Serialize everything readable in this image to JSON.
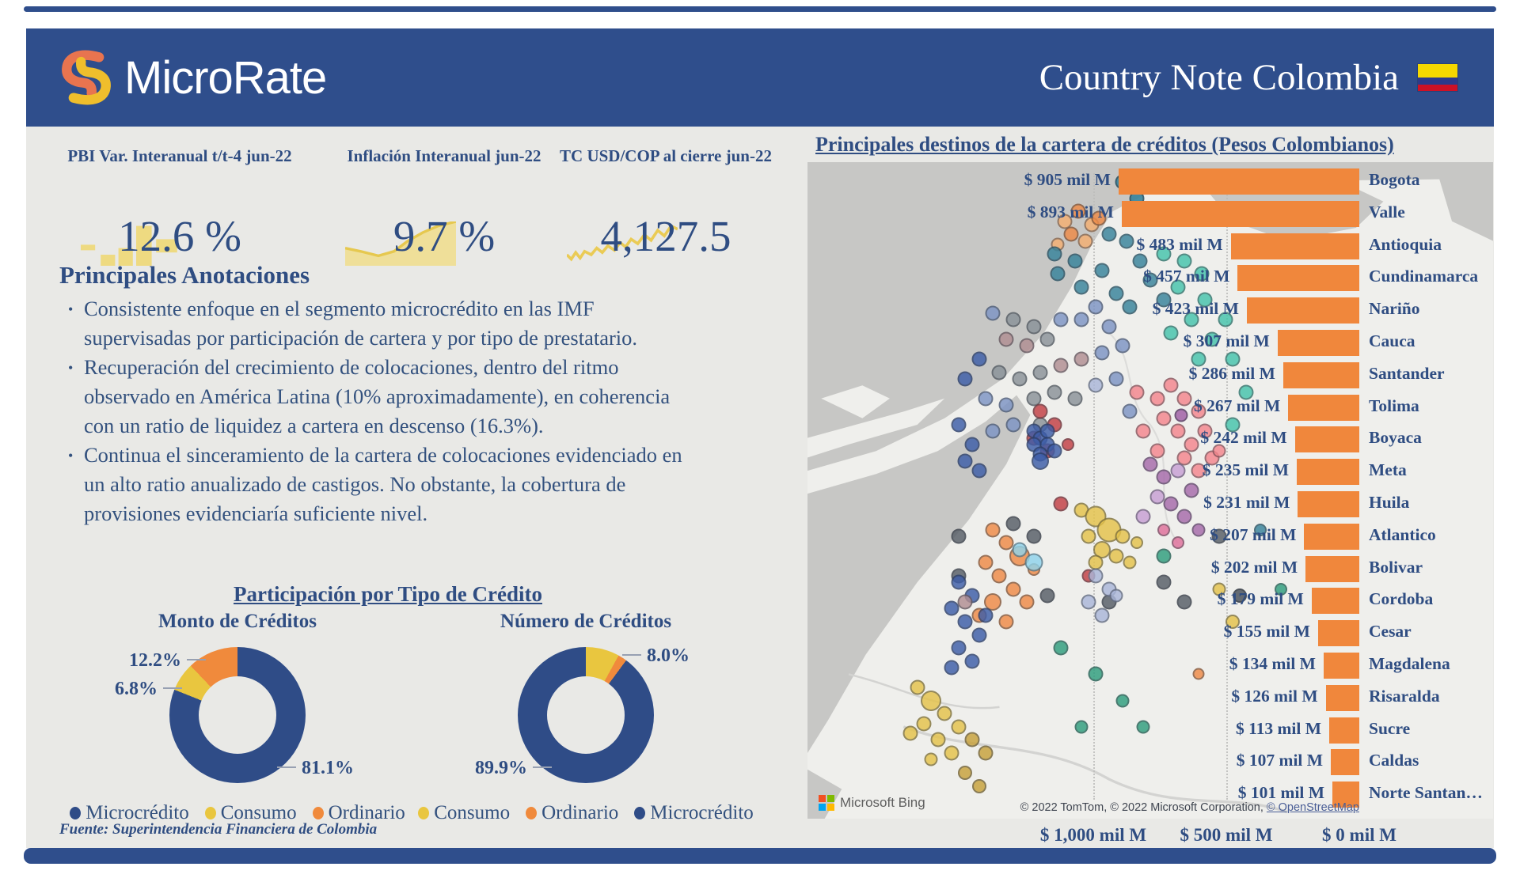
{
  "header": {
    "logo_text": "MicroRate",
    "title": "Country Note Colombia",
    "flag": "colombia-flag",
    "band_color": "#2F4E8C"
  },
  "kpis": [
    {
      "label": "PBI Var. Interanual t/t-4 jun-22",
      "value": "12.6 %",
      "spark": "bar"
    },
    {
      "label": "Inflación Interanual jun-22",
      "value": "9.7 %",
      "spark": "area"
    },
    {
      "label": "TC USD/COP al cierre jun-22",
      "value": "4,127.5",
      "spark": "line"
    }
  ],
  "annotations": {
    "title": "Principales Anotaciones",
    "bullets": [
      "Consistente enfoque en el segmento microcrédito en las IMF supervisadas por participación de cartera y por tipo de prestatario.",
      "Recuperación del crecimiento de colocaciones, dentro del ritmo observado en América Latina (10% aproximadamente), en coherencia con un ratio de liquidez a cartera en descenso (16.3%).",
      "Continua el sinceramiento de la cartera de colocaciones evidenciado en un alto ratio anualizado de castigos. No obstante, la cobertura de provisiones evidenciaría suficiente nivel."
    ]
  },
  "participation": {
    "title": "Participación por Tipo de Crédito",
    "charts": [
      {
        "title": "Monto de Créditos",
        "slices": [
          {
            "label": "Microcrédito",
            "value": 81.1,
            "color": "#2F4C87"
          },
          {
            "label": "Consumo",
            "value": 6.8,
            "color": "#E9C63F"
          },
          {
            "label": "Ordinario",
            "value": 12.2,
            "color": "#F08A3C"
          }
        ],
        "callouts": {
          "a": "12.2%",
          "b": "6.8%",
          "c": "81.1%"
        },
        "legend": [
          "Microcrédito",
          "Consumo",
          "Ordinario"
        ]
      },
      {
        "title": "Número de Créditos",
        "slices": [
          {
            "label": "Consumo",
            "value": 8.0,
            "color": "#E9C63F"
          },
          {
            "label": "Ordinario",
            "value": 2.1,
            "color": "#F08A3C"
          },
          {
            "label": "Microcrédito",
            "value": 89.9,
            "color": "#2F4C87"
          }
        ],
        "callouts": {
          "a": "8.0%",
          "c": "89.9%"
        },
        "legend": [
          "Consumo",
          "Ordinario",
          "Microcrédito"
        ]
      }
    ]
  },
  "legend_colors": {
    "Microcrédito": "#2F4C87",
    "Consumo": "#E9C63F",
    "Ordinario": "#F08A3C"
  },
  "source": "Fuente: Superintendencia Financiera de Colombia",
  "map": {
    "title": "Principales destinos de la cartera de créditos (Pesos Colombianos)",
    "bars": {
      "color": "#F0873C",
      "categories": [
        "Bogota",
        "Valle",
        "Antioquia",
        "Cundinamarca",
        "Nariño",
        "Cauca",
        "Santander",
        "Tolima",
        "Boyaca",
        "Meta",
        "Huila",
        "Atlantico",
        "Bolivar",
        "Cordoba",
        "Cesar",
        "Magdalena",
        "Risaralda",
        "Sucre",
        "Caldas",
        "Norte Santan…"
      ],
      "values": [
        905,
        893,
        483,
        457,
        423,
        307,
        286,
        267,
        242,
        235,
        231,
        207,
        202,
        179,
        155,
        134,
        126,
        113,
        107,
        101
      ],
      "value_labels": [
        "$ 905 mil M",
        "$ 893 mil M",
        "$ 483 mil M",
        "$ 457 mil M",
        "$ 423 mil M",
        "$ 307 mil M",
        "$ 286 mil M",
        "$ 267 mil M",
        "$ 242 mil M",
        "$ 235 mil M",
        "$ 231 mil M",
        "$ 207 mil M",
        "$ 202 mil M",
        "$ 179 mil M",
        "$ 155 mil M",
        "$ 134 mil M",
        "$ 126 mil M",
        "$ 113 mil M",
        "$ 107 mil M",
        "$ 101 mil M"
      ]
    },
    "axis": [
      "$ 1,000 mil M",
      "$ 500 mil M",
      "$ 0 mil M"
    ],
    "attribution": "© 2022 TomTom, © 2022 Microsoft Corporation, ",
    "attribution_link": "© OpenStreetMap",
    "bing": "Microsoft Bing",
    "dot_colors": {
      "nv": "#3D5DA8",
      "sb": "#7D94C4",
      "pw": "#AAB6D9",
      "te": "#37839B",
      "mi": "#45C4AC",
      "sg": "#2F9E7E",
      "sa": "#F4868D",
      "rd": "#C33F44",
      "or": "#EF8B47",
      "lor": "#F5AF72",
      "ye": "#E5C34A",
      "ol": "#C7A13B",
      "mv": "#B18E92",
      "gr": "#8A9298",
      "ds": "#565D66",
      "pl": "#A66BAB",
      "li": "#C79FD4",
      "pk": "#E0709B",
      "lb": "#8FD4EC"
    },
    "dots": [
      [
        37.5,
        9,
        "lor"
      ],
      [
        39.5,
        7.5,
        "or"
      ],
      [
        41.5,
        9.5,
        "lor"
      ],
      [
        38.5,
        11,
        "or"
      ],
      [
        40.5,
        12,
        "lor"
      ],
      [
        42.5,
        8.5,
        "or"
      ],
      [
        36.5,
        12.5,
        "lor",
        17
      ],
      [
        46,
        3,
        "te",
        0,
        1
      ],
      [
        48,
        5.5,
        "te",
        0,
        1
      ],
      [
        36,
        14,
        "te"
      ],
      [
        39,
        15,
        "te"
      ],
      [
        44,
        11,
        "te"
      ],
      [
        46.5,
        12,
        "te"
      ],
      [
        48.5,
        15,
        "te"
      ],
      [
        43,
        16.5,
        "te"
      ],
      [
        40,
        19,
        "te"
      ],
      [
        45,
        20,
        "te"
      ],
      [
        50,
        18,
        "te"
      ],
      [
        47,
        22,
        "te"
      ],
      [
        52,
        21,
        "te"
      ],
      [
        36.5,
        17,
        "te"
      ],
      [
        66,
        56,
        "te",
        16
      ],
      [
        52,
        14,
        "mi"
      ],
      [
        55,
        15,
        "mi"
      ],
      [
        57.5,
        17,
        "mi"
      ],
      [
        54,
        19,
        "mi"
      ],
      [
        58,
        21,
        "mi"
      ],
      [
        56,
        24,
        "mi"
      ],
      [
        53,
        26,
        "mi"
      ],
      [
        59,
        27,
        "mi"
      ],
      [
        61,
        24,
        "mi"
      ],
      [
        57,
        30,
        "mi"
      ],
      [
        62,
        30,
        "mi"
      ],
      [
        64,
        35,
        "mi"
      ],
      [
        62,
        40,
        "mi"
      ],
      [
        27,
        23,
        "sb"
      ],
      [
        30,
        24,
        "gr"
      ],
      [
        33,
        25,
        "gr"
      ],
      [
        29,
        27,
        "mv"
      ],
      [
        32,
        28,
        "mv"
      ],
      [
        35,
        27,
        "gr"
      ],
      [
        37,
        24,
        "sb"
      ],
      [
        40,
        24,
        "sb"
      ],
      [
        42,
        22,
        "sb"
      ],
      [
        44,
        25,
        "sb"
      ],
      [
        28,
        32,
        "gr"
      ],
      [
        31,
        33,
        "gr"
      ],
      [
        34,
        32,
        "gr"
      ],
      [
        37,
        31,
        "mv"
      ],
      [
        40,
        30,
        "mv"
      ],
      [
        43,
        29,
        "sb"
      ],
      [
        46,
        28,
        "sb"
      ],
      [
        26,
        36,
        "sb"
      ],
      [
        29,
        37,
        "sb"
      ],
      [
        33,
        36,
        "gr"
      ],
      [
        36,
        35,
        "gr"
      ],
      [
        39,
        36,
        "gr"
      ],
      [
        42,
        34,
        "pw"
      ],
      [
        45,
        33,
        "sb"
      ],
      [
        30,
        40,
        "sb"
      ],
      [
        34,
        40,
        "gr"
      ],
      [
        27,
        41,
        "sb"
      ],
      [
        47,
        38,
        "sb"
      ],
      [
        25,
        30,
        "nv"
      ],
      [
        23,
        33,
        "nv"
      ],
      [
        22,
        40,
        "nv"
      ],
      [
        24,
        43,
        "nv"
      ],
      [
        23,
        45.5,
        "nv"
      ],
      [
        25,
        47,
        "nv"
      ],
      [
        48,
        35,
        "sa"
      ],
      [
        51,
        36,
        "sa"
      ],
      [
        53,
        34,
        "sa"
      ],
      [
        55,
        36,
        "sa"
      ],
      [
        57,
        38,
        "sa"
      ],
      [
        52,
        39,
        "sa"
      ],
      [
        49,
        41,
        "sa"
      ],
      [
        54,
        41,
        "sa"
      ],
      [
        56,
        43,
        "sa"
      ],
      [
        58,
        41,
        "sa"
      ],
      [
        59,
        45,
        "sa"
      ],
      [
        55,
        45,
        "sa"
      ],
      [
        51,
        44,
        "sa"
      ],
      [
        57,
        47,
        "sa"
      ],
      [
        60,
        44,
        "sa",
        17
      ],
      [
        34,
        38,
        "rd"
      ],
      [
        36,
        40,
        "rd"
      ],
      [
        33,
        42,
        "rd"
      ],
      [
        35,
        44,
        "rd"
      ],
      [
        38,
        43,
        "rd",
        16
      ],
      [
        37,
        52,
        "rd"
      ],
      [
        41,
        63,
        "rd",
        17
      ],
      [
        33,
        41,
        "nv"
      ],
      [
        34,
        42,
        "nv"
      ],
      [
        35,
        43,
        "nv"
      ],
      [
        33,
        43,
        "nv"
      ],
      [
        34,
        44.5,
        "nv"
      ],
      [
        35,
        41,
        "nv"
      ],
      [
        36,
        44,
        "nv"
      ],
      [
        34,
        45.5,
        "nv",
        22
      ],
      [
        50,
        46,
        "pl"
      ],
      [
        52,
        48,
        "pl"
      ],
      [
        54,
        47,
        "li"
      ],
      [
        51,
        51,
        "li"
      ],
      [
        53,
        52,
        "pl"
      ],
      [
        56,
        50,
        "pl"
      ],
      [
        55,
        54,
        "pl"
      ],
      [
        49,
        54,
        "li"
      ],
      [
        57,
        56,
        "pl",
        17
      ],
      [
        54.5,
        38.5,
        "pl",
        17,
        1
      ],
      [
        52,
        56,
        "pk",
        16
      ],
      [
        54,
        58,
        "pk",
        16
      ],
      [
        40,
        53,
        "ye"
      ],
      [
        42,
        54,
        "ye",
        27
      ],
      [
        44,
        56,
        "ye",
        31
      ],
      [
        41,
        57,
        "ye"
      ],
      [
        43,
        59,
        "ye",
        22
      ],
      [
        46,
        57,
        "ye"
      ],
      [
        45,
        60,
        "ye"
      ],
      [
        47,
        61,
        "ye",
        17
      ],
      [
        42,
        61,
        "ye"
      ],
      [
        48,
        58,
        "ye",
        16
      ],
      [
        60,
        65,
        "ye",
        17
      ],
      [
        62,
        70,
        "ye",
        18
      ],
      [
        27,
        56,
        "or"
      ],
      [
        29,
        58,
        "or"
      ],
      [
        31,
        60,
        "or",
        26
      ],
      [
        26,
        61,
        "or"
      ],
      [
        28,
        63,
        "or"
      ],
      [
        30,
        65,
        "or"
      ],
      [
        27,
        67,
        "or",
        22
      ],
      [
        32,
        67,
        "or"
      ],
      [
        29,
        70,
        "or"
      ],
      [
        25,
        69,
        "or"
      ],
      [
        33,
        62,
        "or",
        16
      ],
      [
        57,
        78,
        "or",
        15
      ],
      [
        31,
        59,
        "lb"
      ],
      [
        33,
        61,
        "lb",
        23
      ],
      [
        30,
        55,
        "ds"
      ],
      [
        33,
        57,
        "ds"
      ],
      [
        22,
        57,
        "ds"
      ],
      [
        22,
        63,
        "ds"
      ],
      [
        35,
        66,
        "ds"
      ],
      [
        44,
        67,
        "ds"
      ],
      [
        55,
        67,
        "ds"
      ],
      [
        60,
        57,
        "ds"
      ],
      [
        63,
        66,
        "ds",
        18,
        1
      ],
      [
        52,
        64,
        "ds"
      ],
      [
        22,
        64,
        "nv"
      ],
      [
        24,
        66,
        "nv"
      ],
      [
        21,
        68,
        "nv"
      ],
      [
        23,
        70,
        "nv"
      ],
      [
        25,
        72,
        "nv"
      ],
      [
        22,
        74,
        "nv"
      ],
      [
        24,
        76,
        "nv"
      ],
      [
        21,
        77,
        "nv"
      ],
      [
        26,
        69,
        "nv"
      ],
      [
        42,
        63,
        "pw"
      ],
      [
        44,
        65,
        "pw"
      ],
      [
        41,
        67,
        "pw"
      ],
      [
        43,
        69,
        "pw"
      ],
      [
        45,
        66,
        "pw",
        17
      ],
      [
        23,
        67,
        "mv"
      ],
      [
        16,
        80,
        "ye"
      ],
      [
        18,
        82,
        "ye",
        26
      ],
      [
        20,
        84,
        "ye"
      ],
      [
        17,
        85.5,
        "ye"
      ],
      [
        15,
        87,
        "ye"
      ],
      [
        19,
        88,
        "ye"
      ],
      [
        22,
        86,
        "ye"
      ],
      [
        21,
        90,
        "ye"
      ],
      [
        18,
        91,
        "ye",
        17
      ],
      [
        24,
        88,
        "ol"
      ],
      [
        26,
        90,
        "ol"
      ],
      [
        23,
        93,
        "ol",
        18
      ],
      [
        25,
        95,
        "ol",
        18
      ],
      [
        37,
        74,
        "sg"
      ],
      [
        42,
        78,
        "sg"
      ],
      [
        46,
        82,
        "sg",
        17
      ],
      [
        40,
        86,
        "sg",
        17
      ],
      [
        52,
        60,
        "sg"
      ],
      [
        49,
        86,
        "sg",
        17
      ],
      [
        69,
        65,
        "sg",
        16
      ]
    ]
  },
  "chart_data": [
    {
      "type": "pie",
      "title": "Monto de Créditos",
      "labels": [
        "Microcrédito",
        "Consumo",
        "Ordinario"
      ],
      "values": [
        81.1,
        6.8,
        12.2
      ],
      "unit": "%",
      "legend_position": "bottom"
    },
    {
      "type": "pie",
      "title": "Número de Créditos",
      "labels": [
        "Consumo",
        "Ordinario",
        "Microcrédito"
      ],
      "values": [
        8.0,
        2.1,
        89.9
      ],
      "unit": "%",
      "legend_position": "bottom"
    },
    {
      "type": "bar",
      "orientation": "horizontal",
      "title": "Principales destinos de la cartera de créditos (Pesos Colombianos)",
      "categories": [
        "Bogota",
        "Valle",
        "Antioquia",
        "Cundinamarca",
        "Nariño",
        "Cauca",
        "Santander",
        "Tolima",
        "Boyaca",
        "Meta",
        "Huila",
        "Atlantico",
        "Bolivar",
        "Cordoba",
        "Cesar",
        "Magdalena",
        "Risaralda",
        "Sucre",
        "Caldas",
        "Norte Santander"
      ],
      "values": [
        905,
        893,
        483,
        457,
        423,
        307,
        286,
        267,
        242,
        235,
        231,
        207,
        202,
        179,
        155,
        134,
        126,
        113,
        107,
        101
      ],
      "unit": "mil M",
      "xlabel": "",
      "ylabel": "",
      "xlim": [
        1000,
        0
      ],
      "axis_ticks": [
        "$ 1,000 mil M",
        "$ 500 mil M",
        "$ 0 mil M"
      ],
      "grid": "dotted-vertical"
    }
  ]
}
